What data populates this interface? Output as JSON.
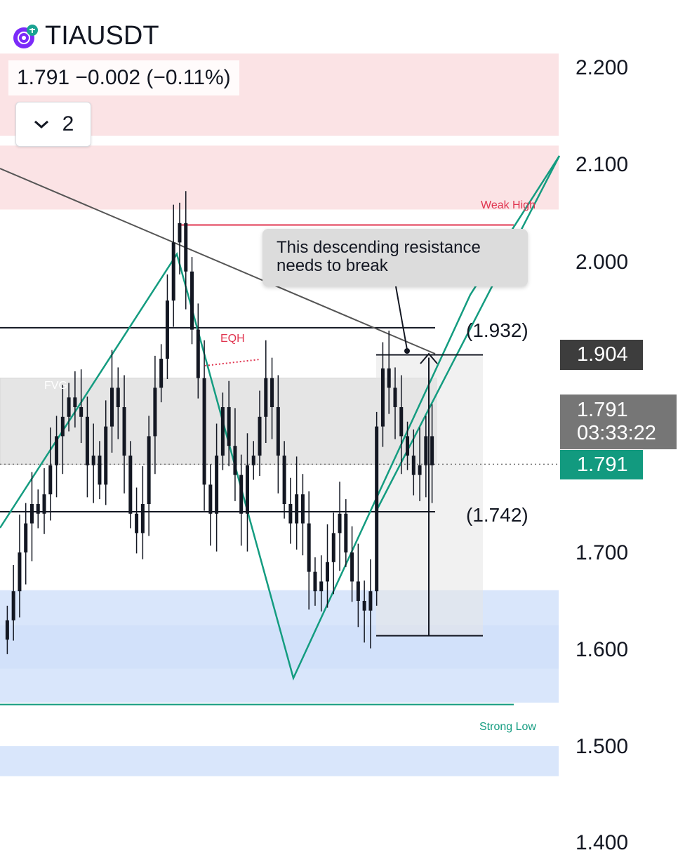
{
  "header": {
    "symbol": "TIAUSDT",
    "quote": "1.791  −0.002 (−0.11%)",
    "counter_value": "2",
    "chevron_icon": "chevron-down-icon",
    "logo_icon": "celestia-logo-icon"
  },
  "colors": {
    "up_trend": "#149c80",
    "resistance_zone": "#fbe3e5",
    "support_zone": "#cfe0fa",
    "weak_high": "#e0344f",
    "strong_low": "#149c80",
    "price_tag": "#129a7f",
    "candles": "#131722"
  },
  "price_axis": {
    "ticks": [
      "2.200",
      "2.100",
      "2.000",
      "1.700",
      "1.600",
      "1.500",
      "1.400"
    ]
  },
  "price_tags": {
    "high_level": "1.904",
    "last_price": "1.791",
    "countdown": "03:33:22",
    "current": "1.791"
  },
  "annotations": {
    "callout": "This descending resistance needs to break",
    "weak_high": "Weak High",
    "strong_low": "Strong Low",
    "eqh": "EQH",
    "fvg": "FVG",
    "level_upper": "(1.932)",
    "level_lower": "(1.742)"
  },
  "chart_data": {
    "type": "candlestick",
    "title": "TIAUSDT",
    "ylim": [
      1.4,
      2.2
    ],
    "y_ticks": [
      2.2,
      2.1,
      2.0,
      1.7,
      1.6,
      1.5,
      1.4
    ],
    "last_price": 1.791,
    "change": -0.002,
    "change_pct": -0.11,
    "levels": {
      "horizontal_resistance": 1.932,
      "horizontal_support": 1.742,
      "weak_high": 2.038,
      "strong_low": 1.543,
      "eqh": 1.905,
      "measured_move_top": 1.904,
      "measured_move_bottom": 1.614
    },
    "zones": [
      {
        "name": "resistance",
        "from": 2.13,
        "to": 2.215
      },
      {
        "name": "resistance",
        "from": 2.054,
        "to": 2.12
      },
      {
        "name": "FVG",
        "from": 1.791,
        "to": 1.88
      },
      {
        "name": "support",
        "from": 1.58,
        "to": 1.661
      },
      {
        "name": "support",
        "from": 1.545,
        "to": 1.625
      },
      {
        "name": "support",
        "from": 1.469,
        "to": 1.5
      }
    ],
    "candle_closes": [
      1.63,
      1.66,
      1.7,
      1.73,
      1.75,
      1.74,
      1.76,
      1.79,
      1.82,
      1.84,
      1.86,
      1.85,
      1.84,
      1.79,
      1.8,
      1.77,
      1.83,
      1.87,
      1.85,
      1.8,
      1.74,
      1.72,
      1.75,
      1.82,
      1.87,
      1.9,
      1.96,
      2.02,
      2.04,
      1.99,
      1.93,
      1.88,
      1.77,
      1.74,
      1.8,
      1.85,
      1.81,
      1.78,
      1.74,
      1.79,
      1.8,
      1.84,
      1.88,
      1.85,
      1.8,
      1.75,
      1.73,
      1.76,
      1.73,
      1.68,
      1.66,
      1.67,
      1.69,
      1.72,
      1.74,
      1.7,
      1.67,
      1.65,
      1.64,
      1.66,
      1.83,
      1.89,
      1.87,
      1.85,
      1.82,
      1.8,
      1.78,
      1.79,
      1.82,
      1.79
    ]
  }
}
